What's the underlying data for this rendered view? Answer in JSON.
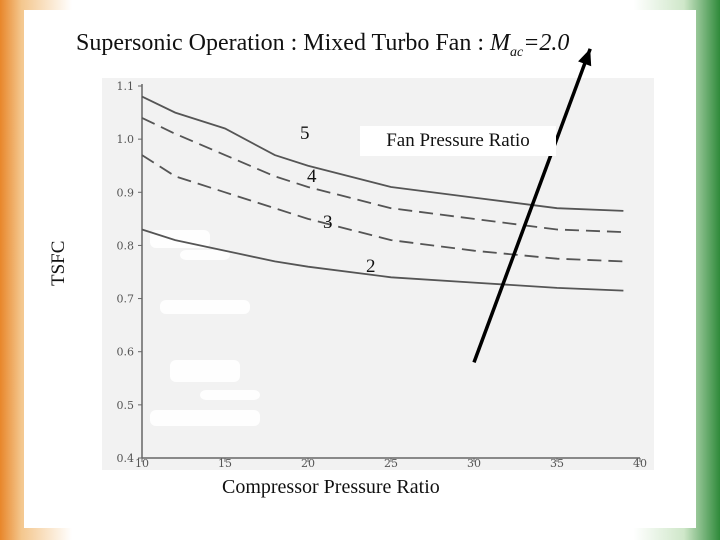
{
  "title": {
    "prefix": "Supersonic Operation : Mixed Turbo Fan : ",
    "mach_symbol": "M",
    "mach_subscript": "ac",
    "mach_value": "=2.0"
  },
  "annotation": "Fan Pressure Ratio",
  "colors": {
    "curve": "#555555",
    "arrow": "#000000",
    "plot_bg": "#f2f2f2"
  },
  "chart_data": {
    "type": "line",
    "xlabel": "Compressor Pressure Ratio",
    "ylabel": "TSFC",
    "xlim": [
      10,
      40
    ],
    "ylim": [
      0.4,
      1.1
    ],
    "x_ticks": [
      10,
      15,
      20,
      25,
      30,
      35,
      40
    ],
    "y_ticks": [
      0.4,
      0.5,
      0.6,
      0.7,
      0.8,
      0.9,
      1.0,
      1.1
    ],
    "grid": false,
    "series": [
      {
        "name": "5",
        "style": "solid",
        "x": [
          10,
          12,
          15,
          18,
          20,
          25,
          30,
          35,
          39
        ],
        "y": [
          1.08,
          1.05,
          1.02,
          0.97,
          0.95,
          0.91,
          0.89,
          0.87,
          0.865
        ]
      },
      {
        "name": "4",
        "style": "dashed",
        "x": [
          10,
          12,
          15,
          18,
          20,
          25,
          30,
          35,
          39
        ],
        "y": [
          1.04,
          1.01,
          0.97,
          0.93,
          0.91,
          0.87,
          0.85,
          0.83,
          0.825
        ]
      },
      {
        "name": "3",
        "style": "dashed",
        "x": [
          10,
          12,
          15,
          18,
          20,
          25,
          30,
          35,
          39
        ],
        "y": [
          0.97,
          0.93,
          0.9,
          0.87,
          0.85,
          0.81,
          0.79,
          0.775,
          0.77
        ]
      },
      {
        "name": "2",
        "style": "solid",
        "x": [
          10,
          12,
          15,
          18,
          20,
          25,
          30,
          35,
          39
        ],
        "y": [
          0.83,
          0.81,
          0.79,
          0.77,
          0.76,
          0.74,
          0.73,
          0.72,
          0.715
        ]
      }
    ],
    "arrow": {
      "from": [
        30,
        0.58
      ],
      "to": [
        37,
        1.17
      ]
    }
  }
}
